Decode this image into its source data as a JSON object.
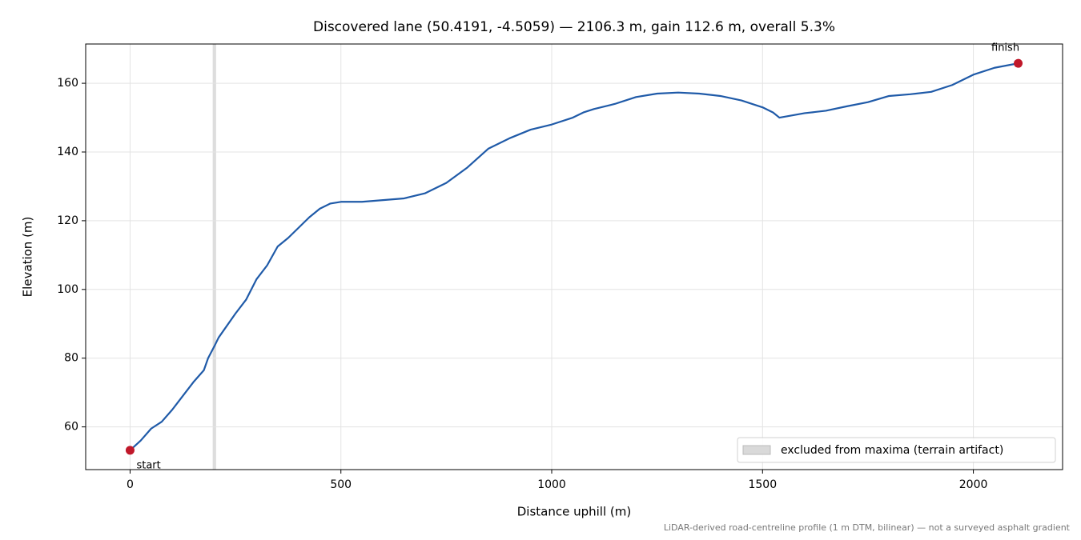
{
  "chart_data": {
    "type": "line",
    "title": "Discovered lane (50.4191, -4.5059) — 2106.3 m, gain 112.6 m, overall 5.3%",
    "x_label": "Distance uphill (m)",
    "y_label": "Elevation (m)",
    "footnote": "LiDAR-derived road-centreline profile (1 m DTM, bilinear) — not a surveyed asphalt gradient",
    "x": [
      0,
      25,
      50,
      75,
      100,
      125,
      150,
      175,
      185,
      200,
      210,
      250,
      275,
      300,
      325,
      350,
      375,
      400,
      425,
      450,
      475,
      500,
      550,
      600,
      650,
      700,
      750,
      800,
      850,
      900,
      950,
      1000,
      1050,
      1075,
      1100,
      1150,
      1200,
      1250,
      1300,
      1350,
      1400,
      1450,
      1500,
      1525,
      1540,
      1600,
      1650,
      1700,
      1750,
      1800,
      1850,
      1900,
      1950,
      2000,
      2050,
      2106.3
    ],
    "series": [
      {
        "name": "elevation",
        "color": "#1f5aa8",
        "values": [
          53.2,
          56,
          59.5,
          61.5,
          65,
          69,
          73,
          76.5,
          80,
          83.5,
          86,
          93,
          97,
          103,
          107,
          112.5,
          115,
          118,
          121,
          123.5,
          125,
          125.5,
          125.5,
          126,
          126.5,
          128,
          131,
          135.5,
          141,
          144,
          146.5,
          148,
          150,
          151.5,
          152.5,
          154,
          156,
          157,
          157.3,
          157,
          156.3,
          155,
          153,
          151.5,
          150,
          151.3,
          152,
          153.3,
          154.5,
          156.3,
          156.8,
          157.5,
          159.5,
          162.5,
          164.5,
          165.8
        ]
      }
    ],
    "marker_color": "#c0182a",
    "annotations": [
      "start",
      "finish"
    ],
    "excluded_span": [
      196,
      204
    ],
    "excluded_color": "#d9d9d9",
    "excluded_label": "excluded from maxima (terrain artifact)",
    "legend": "lower right",
    "xlim": [
      -105.315,
      2211.615
    ],
    "ylim": [
      47.57,
      171.43
    ],
    "xticks": [
      0,
      500,
      1000,
      1500,
      2000
    ],
    "yticks": [
      60,
      80,
      100,
      120,
      140,
      160
    ],
    "grid": true
  }
}
